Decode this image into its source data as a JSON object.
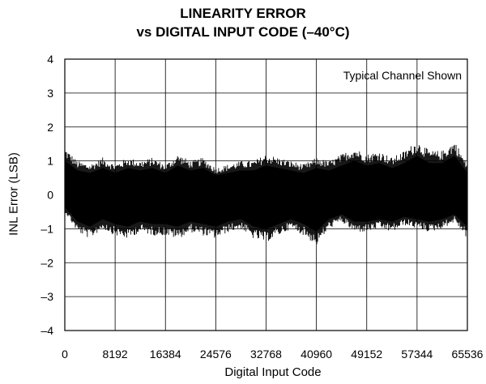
{
  "chart_data": {
    "type": "line",
    "title": "LINEARITY ERROR",
    "subtitle": "vs DIGITAL INPUT CODE (–40°C)",
    "xlabel": "Digital Input Code",
    "ylabel": "INL Error (LSB)",
    "annotation": "Typical Channel Shown",
    "xlim": [
      0,
      65536
    ],
    "ylim": [
      -4,
      4
    ],
    "xticks": [
      "0",
      "8192",
      "16384",
      "24576",
      "32768",
      "40960",
      "49152",
      "57344",
      "65536"
    ],
    "xtick_values": [
      0,
      8192,
      16384,
      24576,
      32768,
      40960,
      49152,
      57344,
      65536
    ],
    "yticks": [
      "4",
      "3",
      "2",
      "1",
      "0",
      "–1",
      "–2",
      "–3",
      "–4"
    ],
    "ytick_values": [
      4,
      3,
      2,
      1,
      0,
      -1,
      -2,
      -3,
      -4
    ],
    "grid": true,
    "series_color": "#000000",
    "envelope": {
      "x": [
        0,
        2048,
        4096,
        6144,
        8192,
        10240,
        12288,
        14336,
        16384,
        18432,
        20480,
        22528,
        24576,
        26624,
        28672,
        30720,
        32768,
        34816,
        36864,
        38912,
        40960,
        43008,
        45056,
        47104,
        49152,
        51200,
        53248,
        55296,
        57344,
        59392,
        61440,
        63488,
        65536
      ],
      "upper": [
        1.4,
        1.0,
        0.9,
        1.1,
        0.9,
        1.1,
        1.0,
        1.1,
        0.9,
        1.2,
        1.0,
        1.1,
        0.8,
        0.9,
        1.0,
        1.0,
        1.2,
        1.1,
        1.0,
        0.9,
        1.1,
        1.0,
        1.2,
        1.4,
        1.2,
        1.3,
        1.1,
        1.3,
        1.6,
        1.3,
        1.3,
        1.6,
        0.9
      ],
      "lower": [
        -0.5,
        -1.1,
        -1.3,
        -1.0,
        -1.2,
        -1.3,
        -1.1,
        -1.2,
        -1.2,
        -1.3,
        -1.1,
        -1.2,
        -1.3,
        -1.1,
        -1.0,
        -1.3,
        -1.4,
        -1.2,
        -1.0,
        -1.2,
        -1.5,
        -1.0,
        -0.8,
        -1.1,
        -1.1,
        -1.0,
        -1.1,
        -0.9,
        -1.0,
        -1.1,
        -1.0,
        -0.8,
        -1.3
      ]
    }
  }
}
